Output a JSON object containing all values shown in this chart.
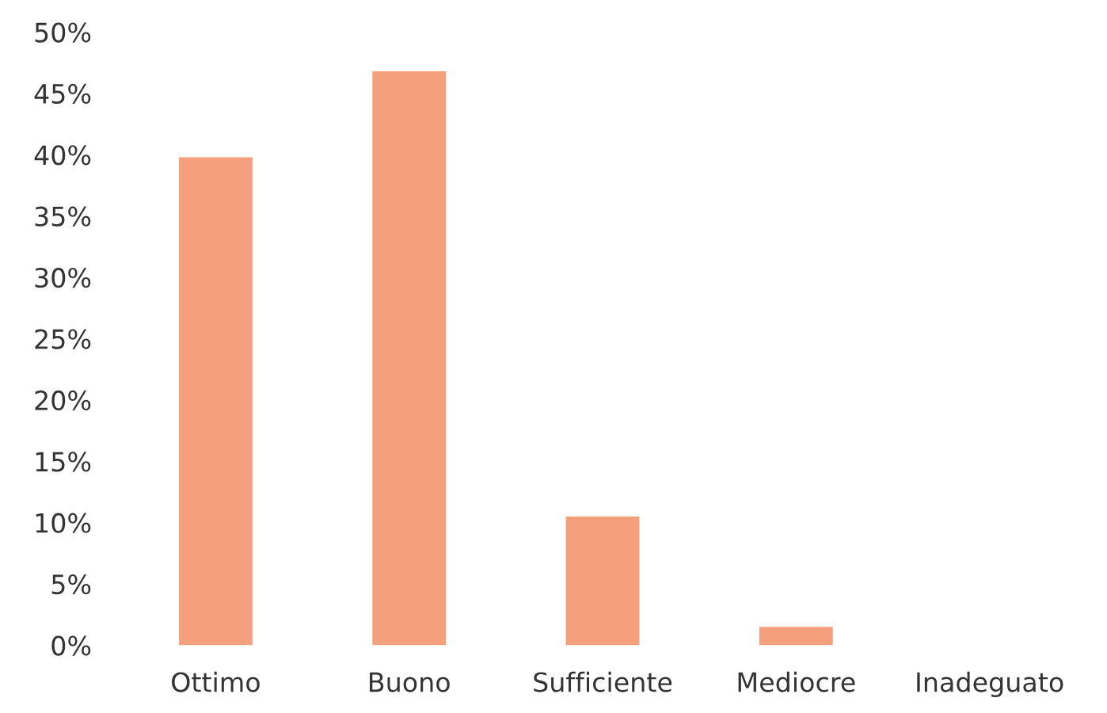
{
  "chart_data": {
    "type": "bar",
    "categories": [
      "Ottimo",
      "Buono",
      "Sufficiente",
      "Mediocre",
      "Inadeguato"
    ],
    "values": [
      39.8,
      46.8,
      10.5,
      1.5,
      0
    ],
    "color": "#f4a07c",
    "ylim": [
      0,
      50
    ],
    "yticks": [
      {
        "value": 0,
        "label": "0%"
      },
      {
        "value": 5,
        "label": "5%"
      },
      {
        "value": 10,
        "label": "10%"
      },
      {
        "value": 15,
        "label": "15%"
      },
      {
        "value": 20,
        "label": "20%"
      },
      {
        "value": 25,
        "label": "25%"
      },
      {
        "value": 30,
        "label": "30%"
      },
      {
        "value": 35,
        "label": "35%"
      },
      {
        "value": 40,
        "label": "40%"
      },
      {
        "value": 45,
        "label": "45%"
      },
      {
        "value": 50,
        "label": "50%"
      }
    ],
    "grid": false
  }
}
